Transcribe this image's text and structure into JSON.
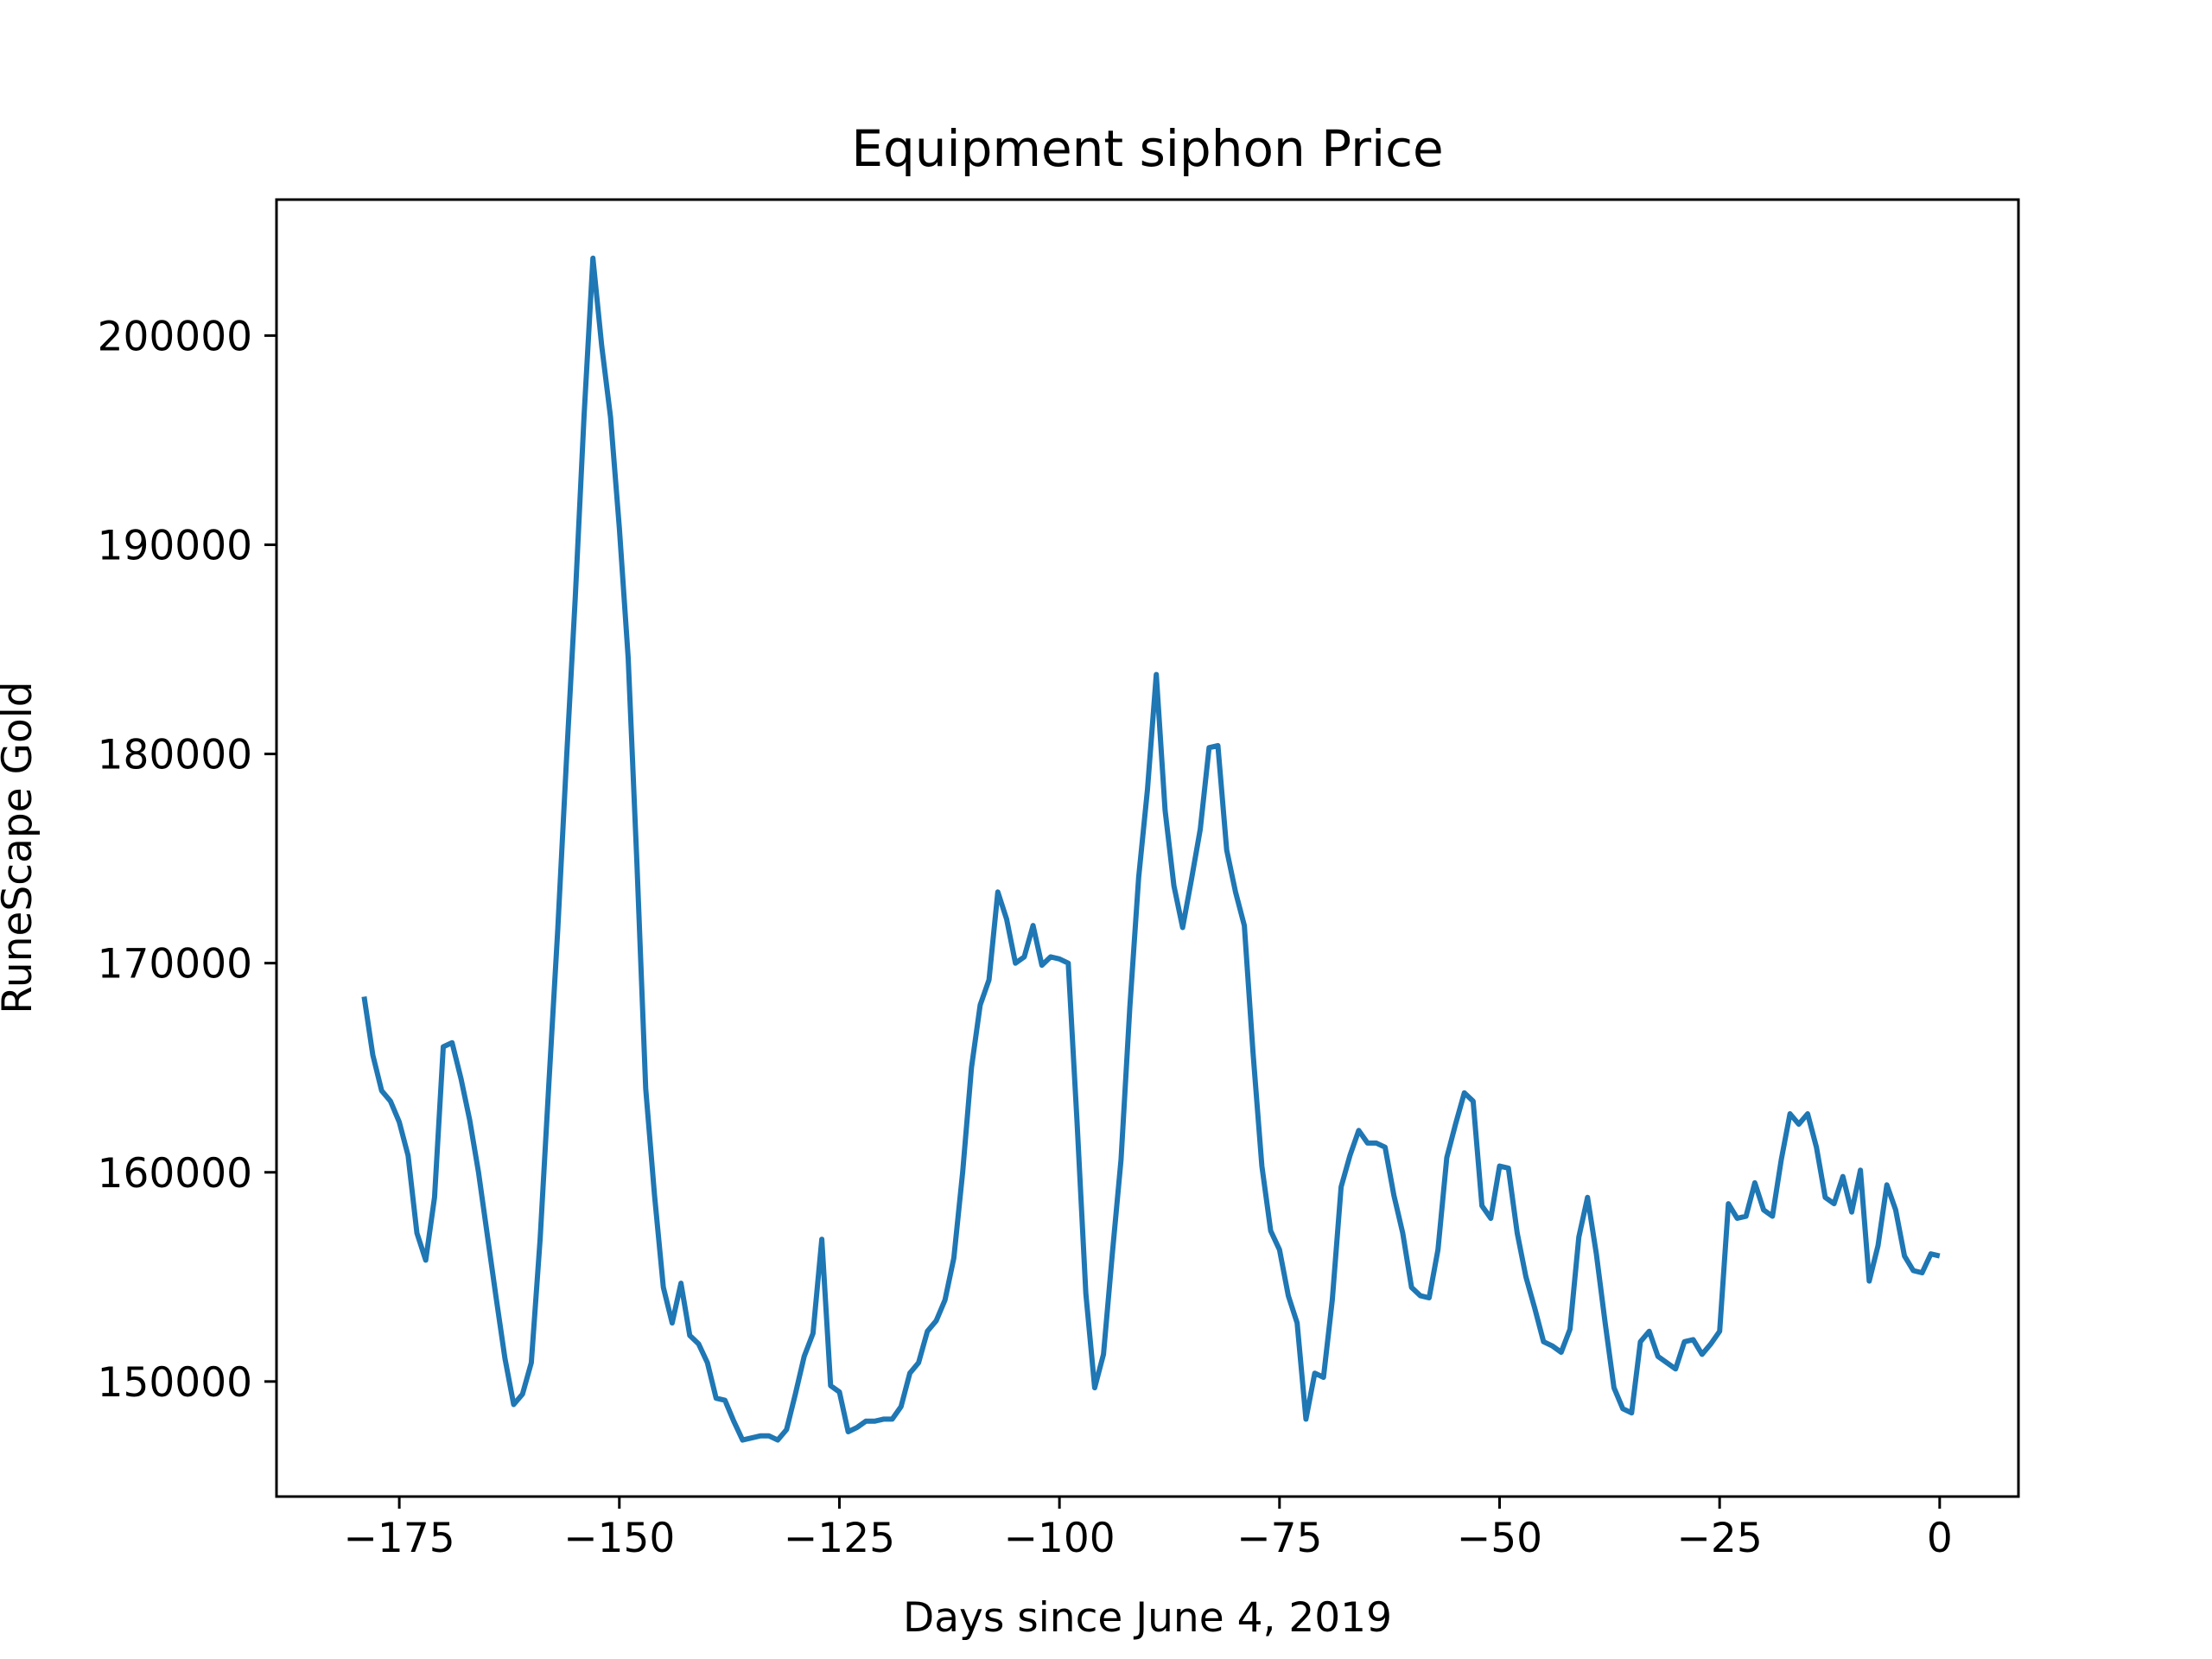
{
  "chart_data": {
    "type": "line",
    "title": "Equipment siphon Price",
    "xlabel": "Days since June 4, 2019",
    "ylabel": "RuneScape Gold",
    "xlim": [
      -188.95,
      8.95
    ],
    "ylim": [
      144500,
      206500
    ],
    "xticks": [
      -175,
      -150,
      -125,
      -100,
      -75,
      -50,
      -25,
      0
    ],
    "xtick_labels": [
      "−175",
      "−150",
      "−125",
      "−100",
      "−75",
      "−50",
      "−25",
      "0"
    ],
    "yticks": [
      150000,
      160000,
      170000,
      180000,
      190000,
      200000
    ],
    "ytick_labels": [
      "150000",
      "160000",
      "170000",
      "180000",
      "190000",
      "200000"
    ],
    "grid": false,
    "series": [
      {
        "color": "#1f77b4",
        "x": [
          -179,
          -178,
          -177,
          -176,
          -175,
          -174,
          -173,
          -172,
          -171,
          -170,
          -169,
          -168,
          -167,
          -166,
          -165,
          -164,
          -163,
          -162,
          -161,
          -160,
          -159,
          -158,
          -157,
          -156,
          -155,
          -154,
          -153,
          -152,
          -151,
          -150,
          -149,
          -148,
          -147,
          -146,
          -145,
          -144,
          -143,
          -142,
          -141,
          -140,
          -139,
          -138,
          -137,
          -136,
          -135,
          -134,
          -133,
          -132,
          -131,
          -130,
          -129,
          -128,
          -127,
          -126,
          -125,
          -124,
          -123,
          -122,
          -121,
          -120,
          -119,
          -118,
          -117,
          -116,
          -115,
          -114,
          -113,
          -112,
          -111,
          -110,
          -109,
          -108,
          -107,
          -106,
          -105,
          -104,
          -103,
          -102,
          -101,
          -100,
          -99,
          -98,
          -97,
          -96,
          -95,
          -94,
          -93,
          -92,
          -91,
          -90,
          -89,
          -88,
          -87,
          -86,
          -85,
          -84,
          -83,
          -82,
          -81,
          -80,
          -79,
          -78,
          -77,
          -76,
          -75,
          -74,
          -73,
          -72,
          -71,
          -70,
          -69,
          -68,
          -67,
          -66,
          -65,
          -64,
          -63,
          -62,
          -61,
          -60,
          -59,
          -58,
          -57,
          -56,
          -55,
          -54,
          -53,
          -52,
          -51,
          -50,
          -49,
          -48,
          -47,
          -46,
          -45,
          -44,
          -43,
          -42,
          -41,
          -40,
          -39,
          -38,
          -37,
          -36,
          -35,
          -34,
          -33,
          -32,
          -31,
          -30,
          -29,
          -28,
          -27,
          -26,
          -25,
          -24,
          -23,
          -22,
          -21,
          -20,
          -19,
          -18,
          -17,
          -16,
          -15,
          -14,
          -13,
          -12,
          -11,
          -10,
          -9,
          -8,
          -7,
          -6,
          -5,
          -4,
          -3,
          -2,
          -1,
          0
        ],
        "values": [
          168400,
          165600,
          163900,
          163400,
          162400,
          160800,
          157100,
          155800,
          158800,
          166000,
          166200,
          164500,
          162500,
          160000,
          157000,
          154000,
          151100,
          148900,
          149400,
          150900,
          156800,
          164300,
          171600,
          179800,
          187500,
          196200,
          203700,
          199500,
          196100,
          190800,
          184600,
          174700,
          164000,
          158900,
          154500,
          152800,
          154700,
          152200,
          151800,
          150900,
          149200,
          149100,
          148100,
          147200,
          147300,
          147400,
          147400,
          147200,
          147700,
          149400,
          151200,
          152300,
          156800,
          149800,
          149500,
          147600,
          147800,
          148100,
          148100,
          148200,
          148200,
          148800,
          150400,
          150900,
          152400,
          152900,
          153900,
          155900,
          160000,
          165000,
          168000,
          169200,
          173400,
          172100,
          170000,
          170300,
          171800,
          169900,
          170300,
          170200,
          170000,
          162400,
          154200,
          149700,
          151300,
          156100,
          160600,
          167900,
          174100,
          178300,
          183800,
          177300,
          173700,
          171700,
          174000,
          176400,
          180300,
          180400,
          175400,
          173400,
          171800,
          165700,
          160300,
          157200,
          156300,
          154100,
          152800,
          148200,
          150400,
          150200,
          153900,
          159300,
          160800,
          162000,
          161400,
          161400,
          161200,
          158900,
          157100,
          154500,
          154100,
          154000,
          156300,
          160700,
          162300,
          163800,
          163400,
          158400,
          157800,
          160300,
          160200,
          157100,
          155000,
          153500,
          151900,
          151700,
          151400,
          152500,
          156900,
          158800,
          156100,
          152800,
          149700,
          148700,
          148500,
          151900,
          152400,
          151200,
          150900,
          150600,
          151900,
          152000,
          151300,
          151800,
          152400,
          158500,
          157800,
          157900,
          159500,
          158200,
          157900,
          160600,
          162800,
          162300,
          162800,
          161200,
          158800,
          158500,
          159800,
          158100,
          160100,
          154800,
          156500,
          159400,
          158200,
          156000,
          155300,
          155200,
          156100,
          156000
        ]
      }
    ]
  }
}
